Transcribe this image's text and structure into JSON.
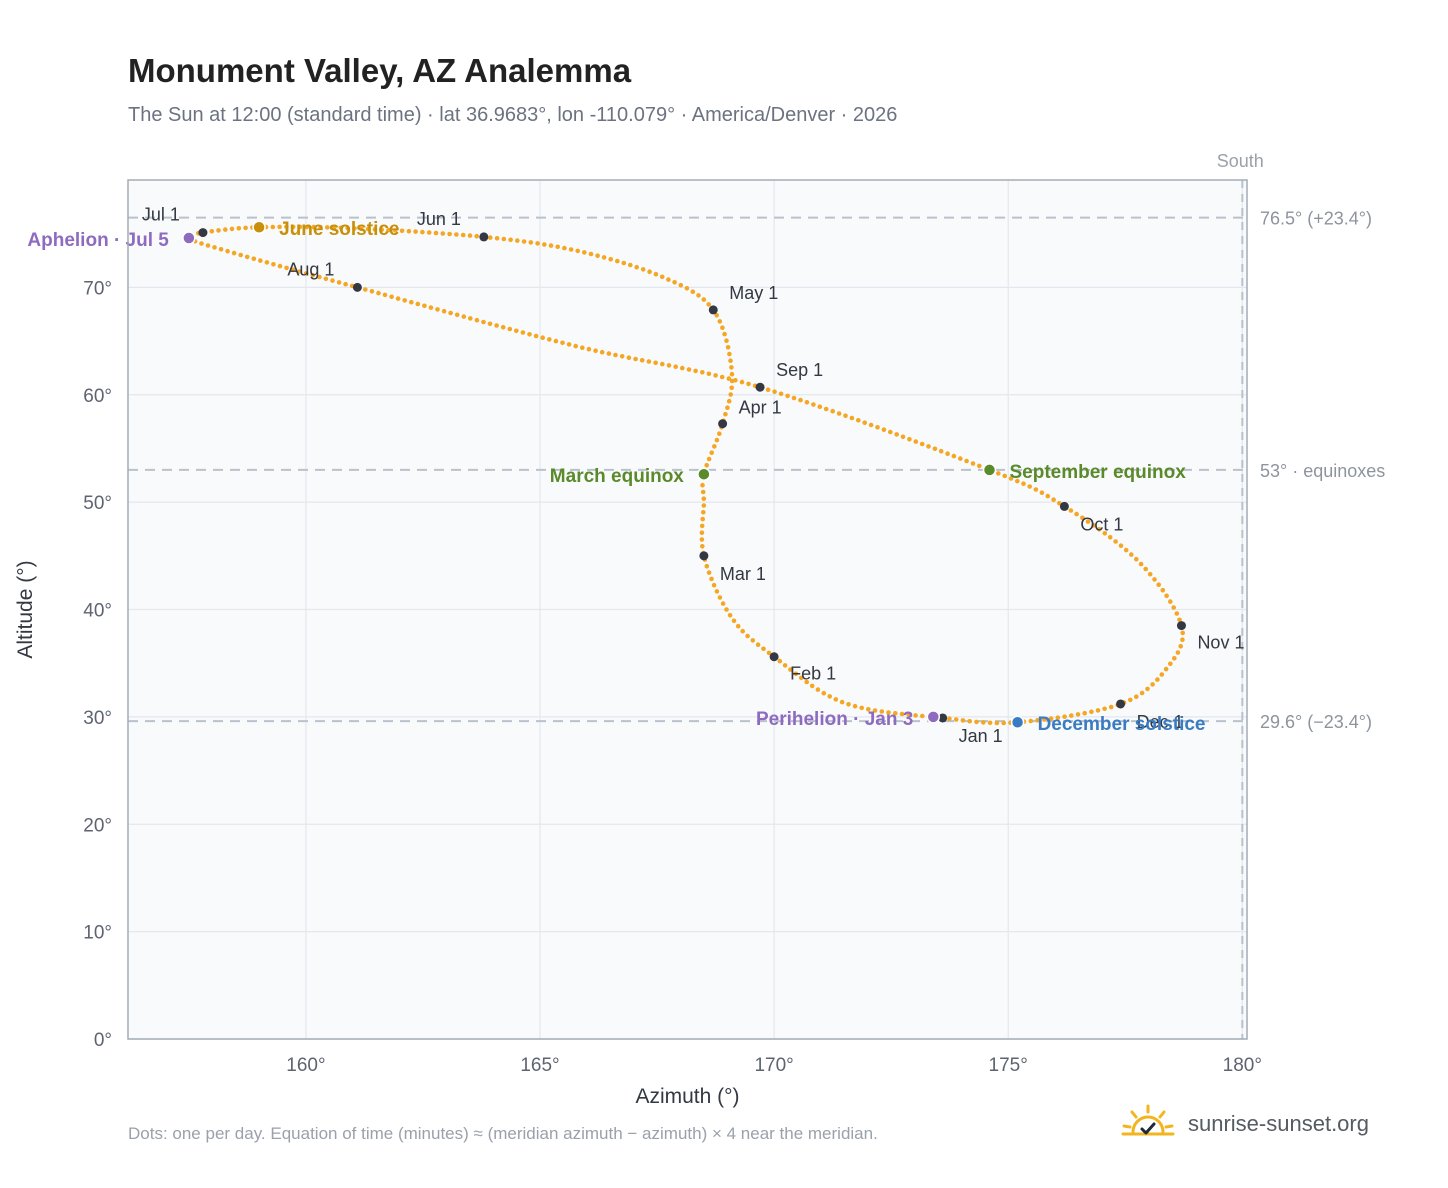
{
  "title": "Monument Valley, AZ Analemma",
  "subtitle": "The Sun at 12:00 (standard time) · lat 36.9683°, lon -110.079° · America/Denver · 2026",
  "footer_note": "Dots: one per day. Equation of time (minutes) ≈ (meridian azimuth − azimuth) × 4 near the meridian.",
  "brand": "sunrise-sunset.org",
  "brand_icon": "sun-check-icon",
  "colors": {
    "curve": "#f5a623",
    "month_dot": "#333842",
    "aphelion": "#8e6bbf",
    "perihelion": "#8e6bbf",
    "june_solstice": "#c8900a",
    "december_solstice": "#3a7cc3",
    "equinox": "#5a8a2a",
    "reference_line": "#b9c2cc",
    "plot_bg": "#f8fafc"
  },
  "chart_data": {
    "type": "scatter",
    "title": "Monument Valley, AZ Analemma",
    "xlabel": "Azimuth (°)",
    "ylabel": "Altitude (°)",
    "xlim": [
      156.2,
      180.1
    ],
    "ylim": [
      0,
      80
    ],
    "x_ticks": [
      160,
      165,
      170,
      175,
      180
    ],
    "x_tick_labels": [
      "160°",
      "165°",
      "170°",
      "175°",
      "180°"
    ],
    "y_ticks": [
      0,
      10,
      20,
      30,
      40,
      50,
      60,
      70
    ],
    "y_tick_labels": [
      "0°",
      "10°",
      "20°",
      "30°",
      "40°",
      "50°",
      "60°",
      "70°"
    ],
    "grid": true,
    "south_label": "South",
    "south_azimuth": 180,
    "reference_lines": [
      {
        "altitude": 76.5,
        "label": "76.5° (+23.4°)"
      },
      {
        "altitude": 53.0,
        "label": "53° · equinoxes"
      },
      {
        "altitude": 29.6,
        "label": "29.6° (−23.4°)"
      }
    ],
    "daily_path": [
      {
        "azimuth": 173.6,
        "altitude": 29.9
      },
      {
        "azimuth": 171.5,
        "altitude": 31.3
      },
      {
        "azimuth": 170.0,
        "altitude": 35.6
      },
      {
        "azimuth": 169.1,
        "altitude": 39.2
      },
      {
        "azimuth": 168.5,
        "altitude": 45.0
      },
      {
        "azimuth": 168.5,
        "altitude": 50.0
      },
      {
        "azimuth": 168.5,
        "altitude": 52.6
      },
      {
        "azimuth": 168.9,
        "altitude": 57.3
      },
      {
        "azimuth": 169.1,
        "altitude": 62.0
      },
      {
        "azimuth": 168.7,
        "altitude": 67.9
      },
      {
        "azimuth": 167.6,
        "altitude": 71.0
      },
      {
        "azimuth": 165.8,
        "altitude": 73.4
      },
      {
        "azimuth": 163.8,
        "altitude": 74.7
      },
      {
        "azimuth": 161.0,
        "altitude": 75.5
      },
      {
        "azimuth": 159.0,
        "altitude": 75.6
      },
      {
        "azimuth": 157.8,
        "altitude": 75.1
      },
      {
        "azimuth": 157.5,
        "altitude": 74.6
      },
      {
        "azimuth": 158.3,
        "altitude": 73.4
      },
      {
        "azimuth": 161.1,
        "altitude": 70.0
      },
      {
        "azimuth": 165.7,
        "altitude": 64.6
      },
      {
        "azimuth": 169.7,
        "altitude": 60.7
      },
      {
        "azimuth": 174.6,
        "altitude": 53.0
      },
      {
        "azimuth": 176.2,
        "altitude": 49.6
      },
      {
        "azimuth": 177.8,
        "altitude": 44.4
      },
      {
        "azimuth": 178.7,
        "altitude": 38.5
      },
      {
        "azimuth": 178.4,
        "altitude": 34.6
      },
      {
        "azimuth": 177.4,
        "altitude": 31.2
      },
      {
        "azimuth": 175.2,
        "altitude": 29.5
      },
      {
        "azimuth": 173.6,
        "altitude": 29.9
      }
    ],
    "month_markers": [
      {
        "label": "Jan 1",
        "azimuth": 173.6,
        "altitude": 29.9
      },
      {
        "label": "Feb 1",
        "azimuth": 170.0,
        "altitude": 35.6
      },
      {
        "label": "Mar 1",
        "azimuth": 168.5,
        "altitude": 45.0
      },
      {
        "label": "Apr 1",
        "azimuth": 168.9,
        "altitude": 57.3
      },
      {
        "label": "May 1",
        "azimuth": 168.7,
        "altitude": 67.9
      },
      {
        "label": "Jun 1",
        "azimuth": 163.8,
        "altitude": 74.7
      },
      {
        "label": "Jul 1",
        "azimuth": 157.8,
        "altitude": 75.1
      },
      {
        "label": "Aug 1",
        "azimuth": 161.1,
        "altitude": 70.0
      },
      {
        "label": "Sep 1",
        "azimuth": 169.7,
        "altitude": 60.7
      },
      {
        "label": "Oct 1",
        "azimuth": 176.2,
        "altitude": 49.6
      },
      {
        "label": "Nov 1",
        "azimuth": 178.7,
        "altitude": 38.5
      },
      {
        "label": "Dec 1",
        "azimuth": 177.4,
        "altitude": 31.2
      }
    ],
    "events": [
      {
        "label": "Aphelion · Jul 5",
        "kind": "aphelion",
        "azimuth": 157.5,
        "altitude": 74.6
      },
      {
        "label": "June solstice",
        "kind": "june_solstice",
        "azimuth": 159.0,
        "altitude": 75.6
      },
      {
        "label": "March equinox",
        "kind": "equinox",
        "azimuth": 168.5,
        "altitude": 52.6
      },
      {
        "label": "September equinox",
        "kind": "equinox",
        "azimuth": 174.6,
        "altitude": 53.0
      },
      {
        "label": "Perihelion · Jan 3",
        "kind": "perihelion",
        "azimuth": 173.4,
        "altitude": 30.0
      },
      {
        "label": "December solstice",
        "kind": "december_solstice",
        "azimuth": 175.2,
        "altitude": 29.5
      }
    ]
  }
}
